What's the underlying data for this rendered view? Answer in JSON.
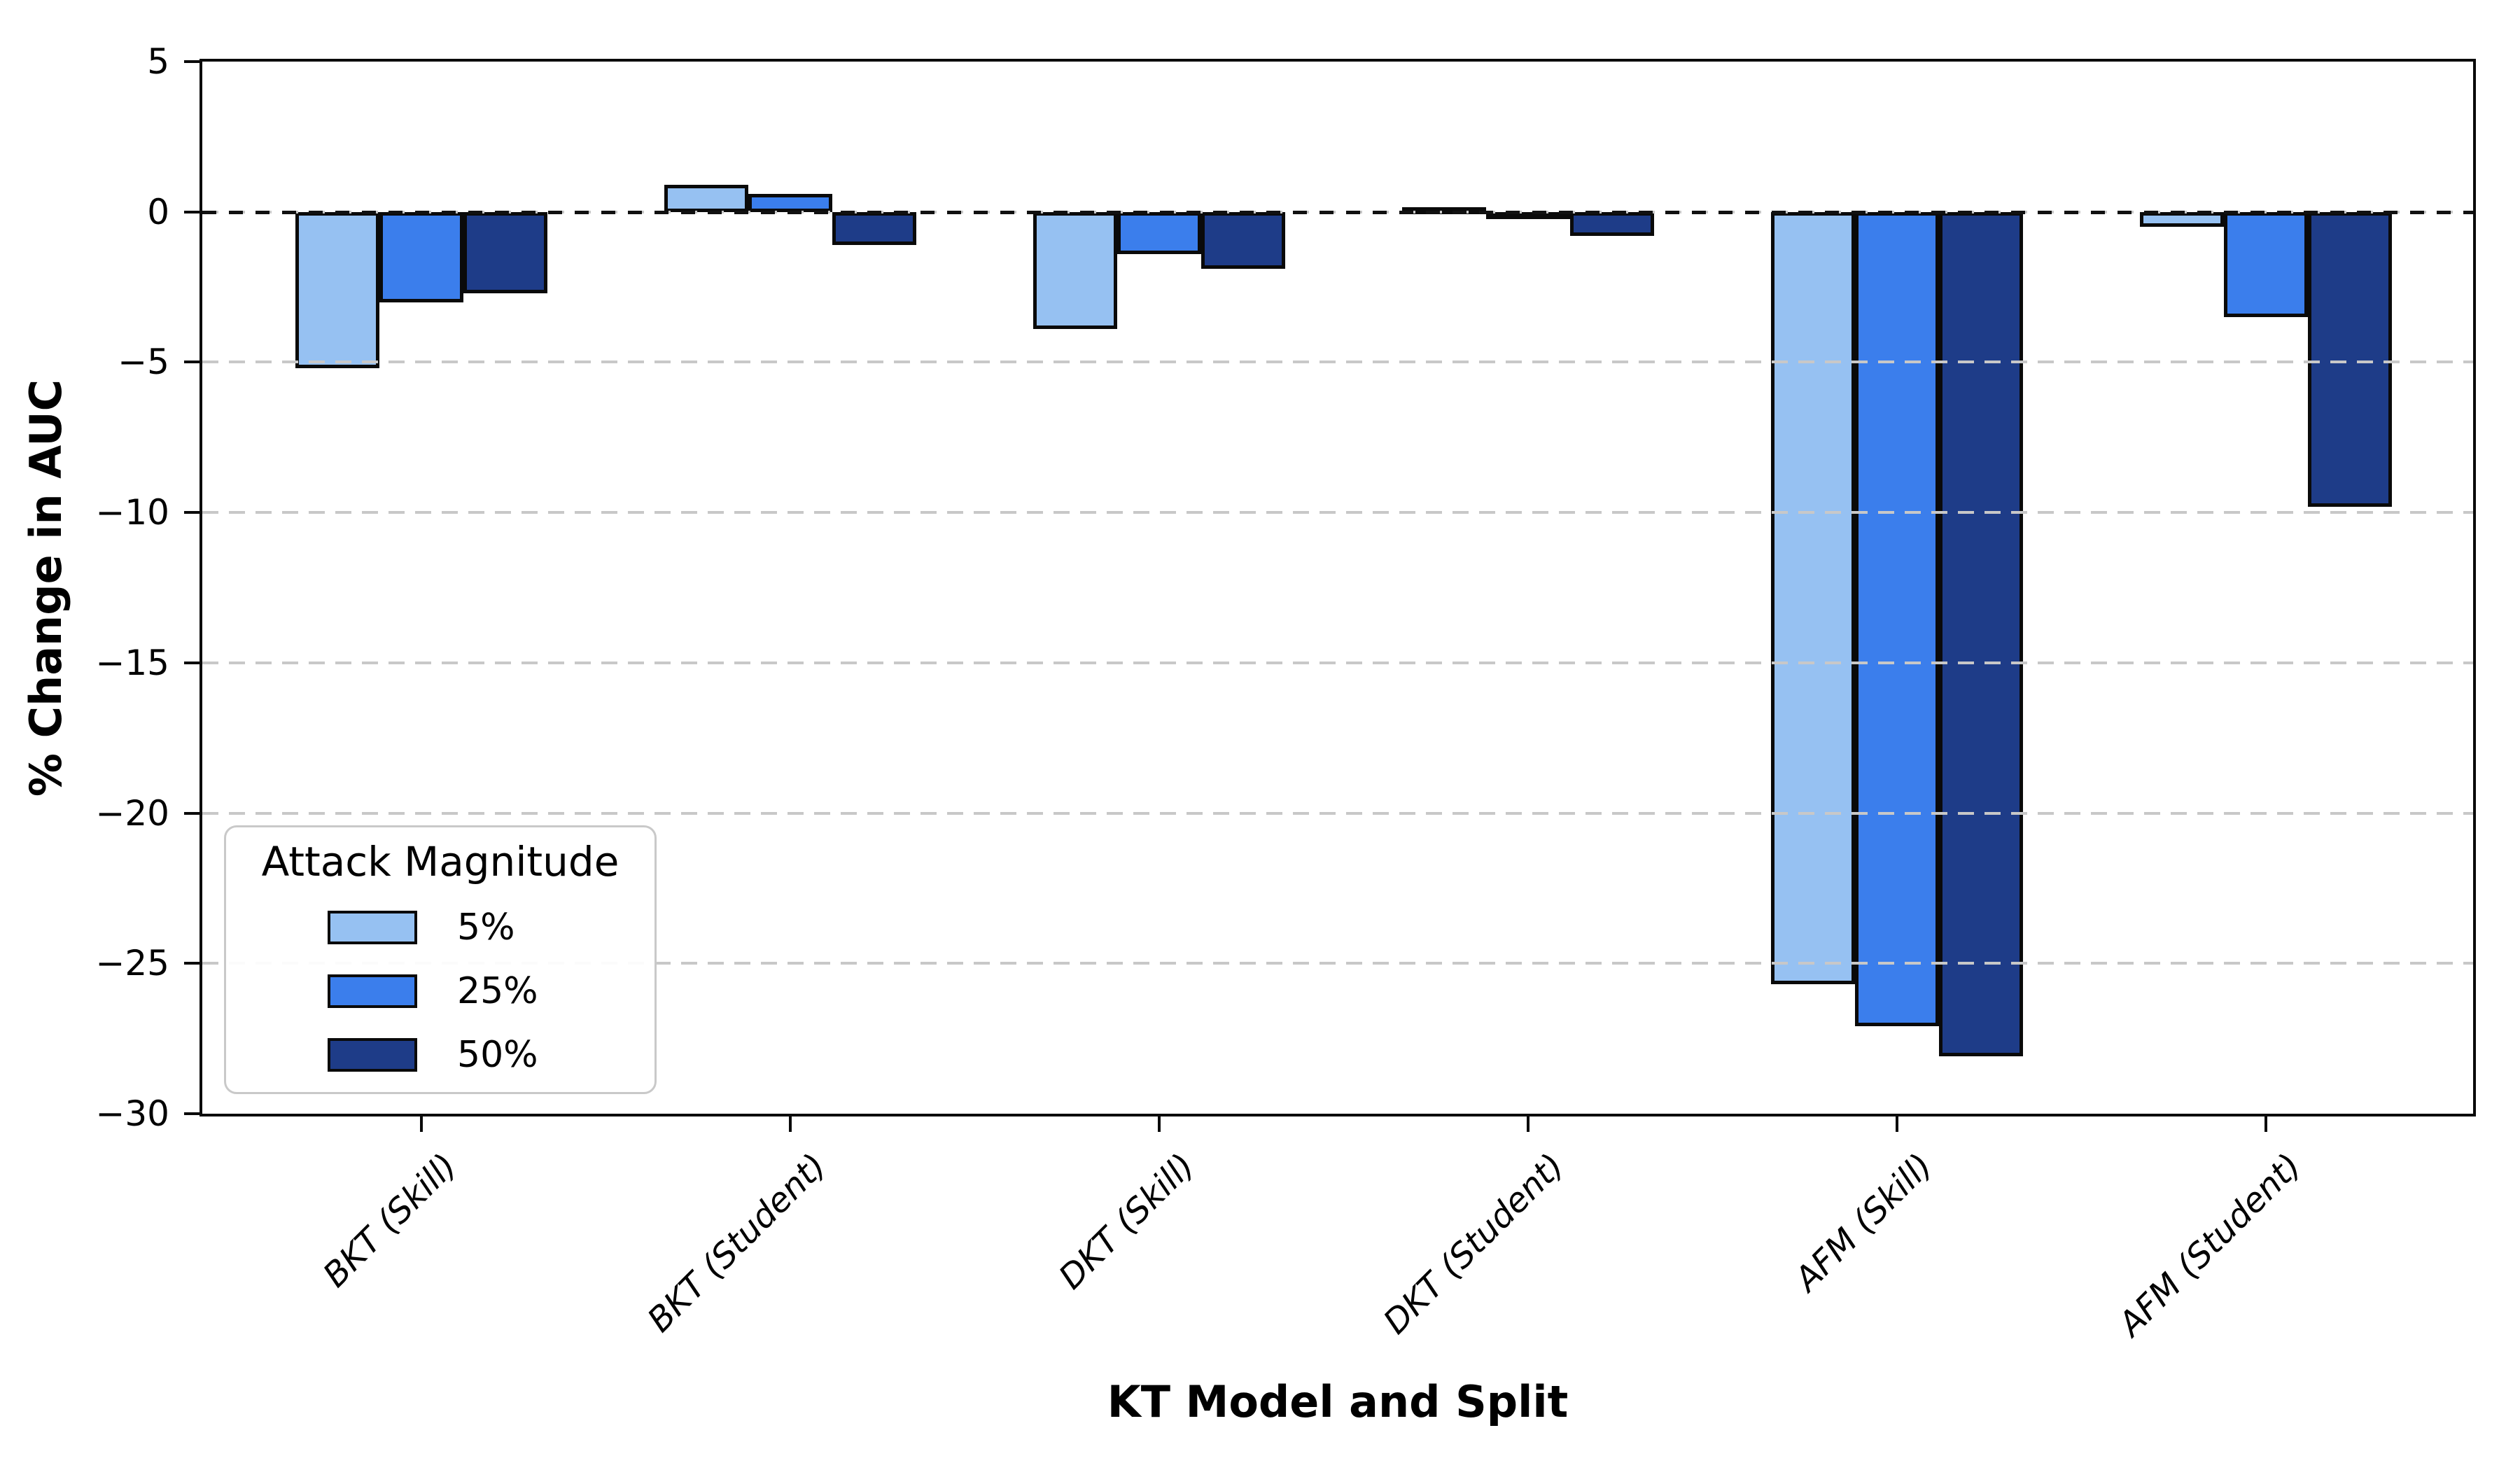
{
  "chart_data": {
    "type": "bar",
    "title": "",
    "xlabel": "KT Model and Split",
    "ylabel": "% Change in AUC",
    "categories": [
      "BKT (Skill)",
      "BKT (Student)",
      "DKT (Skill)",
      "DKT (Student)",
      "AFM (Skill)",
      "AFM (Student)"
    ],
    "series": [
      {
        "name": "5%",
        "color": "#96C1F2",
        "values": [
          -5.2,
          0.9,
          -3.9,
          0.15,
          -25.7,
          -0.5
        ]
      },
      {
        "name": "25%",
        "color": "#3B7EEC",
        "values": [
          -3.0,
          0.6,
          -1.4,
          -0.25,
          -27.1,
          -3.5
        ]
      },
      {
        "name": "50%",
        "color": "#1E3C88",
        "values": [
          -2.7,
          -1.1,
          -1.9,
          -0.8,
          -28.1,
          -9.8
        ]
      }
    ],
    "ylim": [
      -30,
      5
    ],
    "yticks": [
      5,
      0,
      -5,
      -10,
      -15,
      -20,
      -25,
      -30
    ],
    "grid": {
      "axis": "y",
      "style": "dashed",
      "color": "#c8c8c8"
    },
    "zero_line": {
      "value": 0,
      "style": "dashed",
      "color": "#000000"
    },
    "legend": {
      "title": "Attack Magnitude",
      "position": "lower left",
      "entries": [
        "5%",
        "25%",
        "50%"
      ]
    },
    "bar_edge_color": "#000000",
    "background_color": "#ffffff"
  }
}
